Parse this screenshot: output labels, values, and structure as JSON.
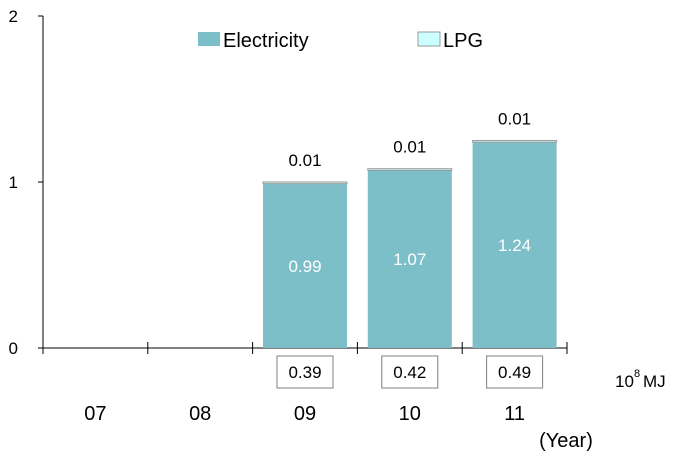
{
  "chart_data": {
    "type": "bar",
    "stacked": true,
    "categories": [
      "07",
      "08",
      "09",
      "10",
      "11"
    ],
    "series": [
      {
        "name": "Electricity",
        "values": [
          null,
          null,
          0.99,
          1.07,
          1.24
        ],
        "color": "#7dbfc9"
      },
      {
        "name": "LPG",
        "values": [
          null,
          null,
          0.01,
          0.01,
          0.01
        ],
        "color": "#ccffff"
      }
    ],
    "ylim": [
      0,
      2
    ],
    "yticks": [
      "0",
      "1",
      "2"
    ],
    "box_values": [
      null,
      null,
      "0.39",
      "0.42",
      "0.49"
    ],
    "unit": {
      "base": "10",
      "exponent": "8",
      "suffix": "MJ"
    },
    "xlabel": "(Year)",
    "legend_position": "top",
    "grid": false
  }
}
